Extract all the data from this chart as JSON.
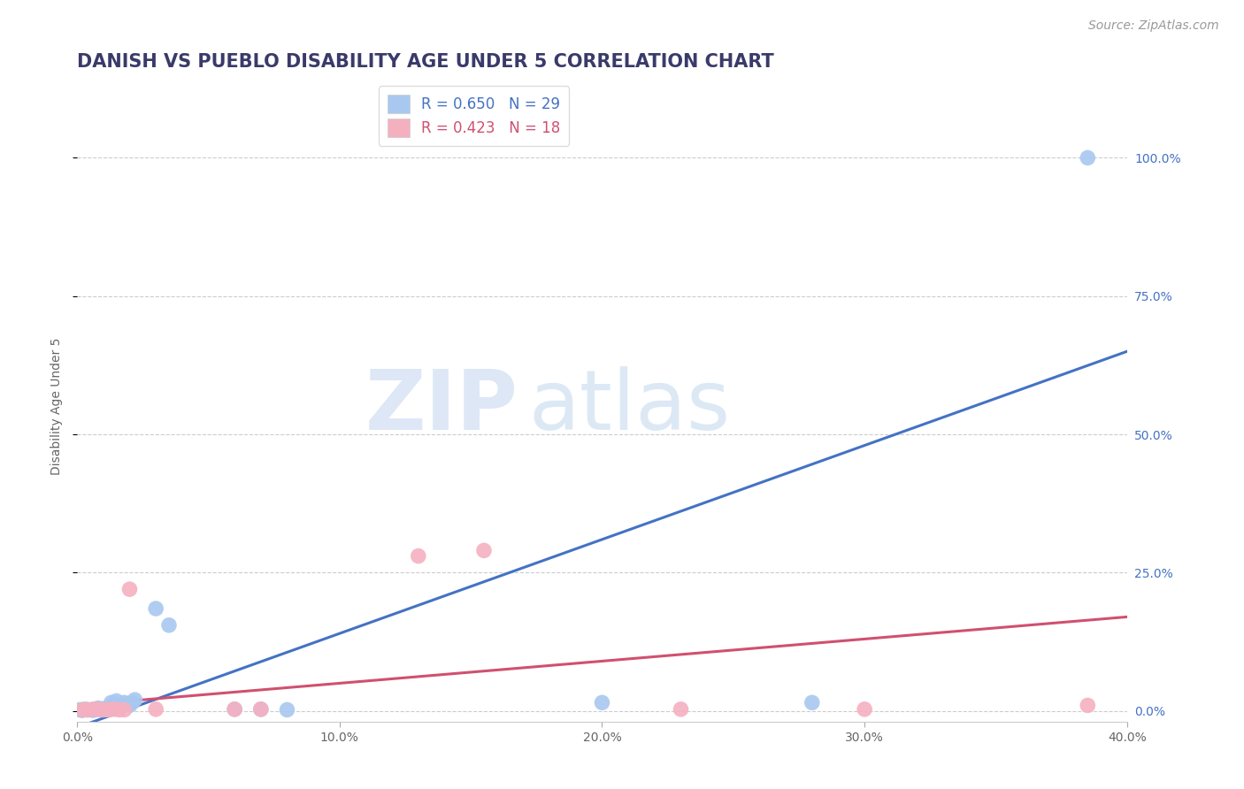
{
  "title": "DANISH VS PUEBLO DISABILITY AGE UNDER 5 CORRELATION CHART",
  "source": "Source: ZipAtlas.com",
  "ylabel": "Disability Age Under 5",
  "xlim": [
    0.0,
    0.4
  ],
  "ylim": [
    -0.02,
    1.12
  ],
  "yticks": [
    0.0,
    0.25,
    0.5,
    0.75,
    1.0
  ],
  "ytick_labels": [
    "0.0%",
    "25.0%",
    "50.0%",
    "75.0%",
    "100.0%"
  ],
  "xticks": [
    0.0,
    0.1,
    0.2,
    0.3,
    0.4
  ],
  "xtick_labels": [
    "0.0%",
    "10.0%",
    "20.0%",
    "30.0%",
    "40.0%"
  ],
  "danes_R": 0.65,
  "danes_N": 29,
  "pueblo_R": 0.423,
  "pueblo_N": 18,
  "danes_color": "#A8C8F0",
  "pueblo_color": "#F5B0C0",
  "danes_line_color": "#4472C4",
  "pueblo_line_color": "#D05070",
  "danes_points": [
    [
      0.001,
      0.002
    ],
    [
      0.002,
      0.001
    ],
    [
      0.003,
      0.003
    ],
    [
      0.004,
      0.002
    ],
    [
      0.006,
      0.001
    ],
    [
      0.007,
      0.003
    ],
    [
      0.008,
      0.005
    ],
    [
      0.009,
      0.002
    ],
    [
      0.01,
      0.004
    ],
    [
      0.011,
      0.003
    ],
    [
      0.012,
      0.002
    ],
    [
      0.013,
      0.015
    ],
    [
      0.014,
      0.012
    ],
    [
      0.015,
      0.018
    ],
    [
      0.016,
      0.008
    ],
    [
      0.017,
      0.01
    ],
    [
      0.018,
      0.015
    ],
    [
      0.019,
      0.012
    ],
    [
      0.02,
      0.01
    ],
    [
      0.021,
      0.015
    ],
    [
      0.022,
      0.02
    ],
    [
      0.03,
      0.185
    ],
    [
      0.035,
      0.155
    ],
    [
      0.06,
      0.003
    ],
    [
      0.07,
      0.003
    ],
    [
      0.08,
      0.002
    ],
    [
      0.2,
      0.015
    ],
    [
      0.28,
      0.015
    ],
    [
      0.385,
      1.0
    ]
  ],
  "pueblo_points": [
    [
      0.002,
      0.002
    ],
    [
      0.004,
      0.002
    ],
    [
      0.006,
      0.003
    ],
    [
      0.008,
      0.003
    ],
    [
      0.01,
      0.002
    ],
    [
      0.012,
      0.002
    ],
    [
      0.014,
      0.003
    ],
    [
      0.016,
      0.002
    ],
    [
      0.018,
      0.002
    ],
    [
      0.02,
      0.22
    ],
    [
      0.03,
      0.003
    ],
    [
      0.06,
      0.003
    ],
    [
      0.07,
      0.003
    ],
    [
      0.13,
      0.28
    ],
    [
      0.155,
      0.29
    ],
    [
      0.23,
      0.003
    ],
    [
      0.3,
      0.003
    ],
    [
      0.385,
      0.01
    ]
  ],
  "danes_line_x": [
    0.0,
    0.4
  ],
  "danes_line_y": [
    -0.03,
    0.65
  ],
  "pueblo_line_x": [
    0.0,
    0.4
  ],
  "pueblo_line_y": [
    0.01,
    0.17
  ],
  "watermark_zip": "ZIP",
  "watermark_atlas": "atlas",
  "background_color": "#FFFFFF",
  "title_color": "#3A3A6A",
  "source_color": "#999999",
  "title_fontsize": 15,
  "axis_label_fontsize": 10,
  "tick_fontsize": 10,
  "legend_fontsize": 12,
  "source_fontsize": 10
}
